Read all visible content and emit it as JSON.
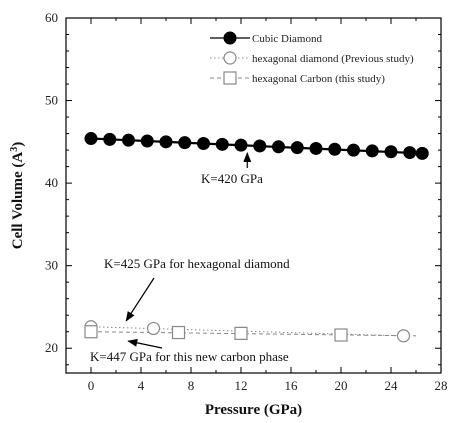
{
  "chart_data": {
    "type": "scatter",
    "xlabel": "Pressure (GPa)",
    "ylabel": "Cell Volume (A",
    "ylabel_superscript": "3",
    "ylabel_close": ")",
    "xlim": [
      -2,
      28
    ],
    "ylim": [
      17,
      60
    ],
    "xticks": [
      0,
      4,
      8,
      12,
      16,
      20,
      24,
      28
    ],
    "yticks": [
      20,
      30,
      40,
      50,
      60
    ],
    "xtick_labels": [
      "0",
      "4",
      "8",
      "12",
      "16",
      "20",
      "24",
      "28"
    ],
    "ytick_labels": [
      "20",
      "30",
      "40",
      "50",
      "60"
    ],
    "legend_position": "top-right",
    "grid": false,
    "series": [
      {
        "name": "Cubic Diamond",
        "marker": "filled-circle",
        "line": "solid",
        "color": "#000000",
        "x": [
          0,
          1.5,
          3,
          4.5,
          6,
          7.5,
          9,
          10.5,
          12,
          13.5,
          15,
          16.5,
          18,
          19.5,
          21,
          22.5,
          24,
          25.5,
          26.5
        ],
        "y": [
          45.4,
          45.3,
          45.2,
          45.1,
          45.0,
          44.9,
          44.8,
          44.7,
          44.6,
          44.5,
          44.4,
          44.3,
          44.2,
          44.1,
          44.0,
          43.9,
          43.8,
          43.7,
          43.6
        ],
        "fit_x": [
          0,
          26.5
        ],
        "fit_y": [
          45.4,
          43.6
        ]
      },
      {
        "name": "hexagonal diamond (Previous study)",
        "marker": "open-circle",
        "line": "dotted",
        "color": "#888888",
        "x": [
          0,
          5,
          25
        ],
        "y": [
          22.6,
          22.4,
          21.5
        ],
        "fit_x": [
          0,
          25
        ],
        "fit_y": [
          22.6,
          21.5
        ]
      },
      {
        "name": "hexagonal Carbon (this study)",
        "marker": "open-square",
        "line": "dashed",
        "color": "#888888",
        "x": [
          0,
          7,
          12,
          20
        ],
        "y": [
          22.0,
          21.9,
          21.8,
          21.6
        ],
        "fit_x": [
          0,
          26
        ],
        "fit_y": [
          22.0,
          21.5
        ]
      }
    ],
    "annotations": [
      {
        "text": "K=420 GPa",
        "arrow_to": [
          12.5,
          44.5
        ]
      },
      {
        "text": "K=425 GPa for hexagonal diamond",
        "arrow_to": [
          2.5,
          22.6
        ]
      },
      {
        "text": "K=447 GPa for this new carbon phase",
        "arrow_to": [
          2.5,
          21.6
        ]
      }
    ]
  }
}
